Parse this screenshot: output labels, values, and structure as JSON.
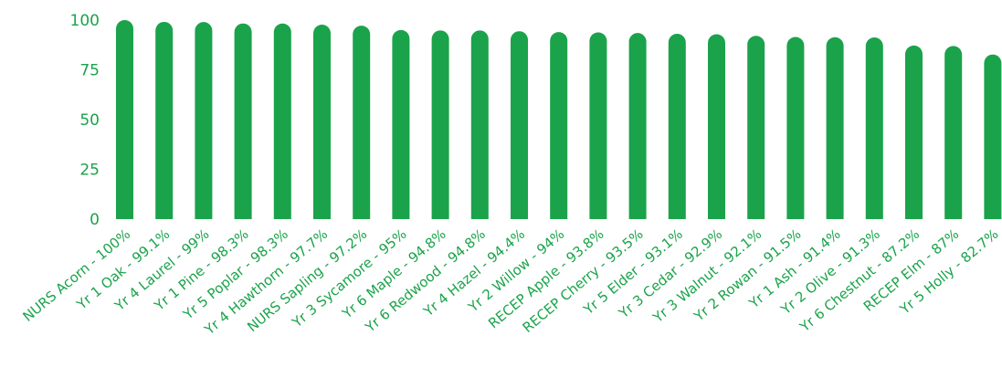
{
  "chart_data": {
    "type": "bar",
    "title": "",
    "xlabel": "",
    "ylabel": "",
    "ylim": [
      0,
      100
    ],
    "yticks": [
      0,
      25,
      50,
      75,
      100
    ],
    "grid": false,
    "bar_color": "#1aa34a",
    "text_color": "#1aa34a",
    "categories": [
      "NURS Acorn - 100%",
      "Yr 1 Oak - 99.1%",
      "Yr 4 Laurel - 99%",
      "Yr 1 Pine - 98.3%",
      "Yr 5 Poplar - 98.3%",
      "Yr 4 Hawthorn - 97.7%",
      "NURS Sapling - 97.2%",
      "Yr 3 Sycamore - 95%",
      "Yr 6 Maple - 94.8%",
      "Yr 6 Redwood - 94.8%",
      "Yr 4 Hazel - 94.4%",
      "Yr 2 Willow - 94%",
      "RECEP Apple - 93.8%",
      "RECEP Cherry - 93.5%",
      "Yr 5 Elder - 93.1%",
      "Yr 3 Cedar - 92.9%",
      "Yr 3 Walnut - 92.1%",
      "Yr 2 Rowan - 91.5%",
      "Yr 1 Ash - 91.4%",
      "Yr 2 Olive - 91.3%",
      "Yr 6 Chestnut - 87.2%",
      "RECEP Elm - 87%",
      "Yr 5 Holly - 82.7%"
    ],
    "values": [
      100,
      99.1,
      99,
      98.3,
      98.3,
      97.7,
      97.2,
      95,
      94.8,
      94.8,
      94.4,
      94,
      93.8,
      93.5,
      93.1,
      92.9,
      92.1,
      91.5,
      91.4,
      91.3,
      87.2,
      87,
      82.7
    ]
  }
}
